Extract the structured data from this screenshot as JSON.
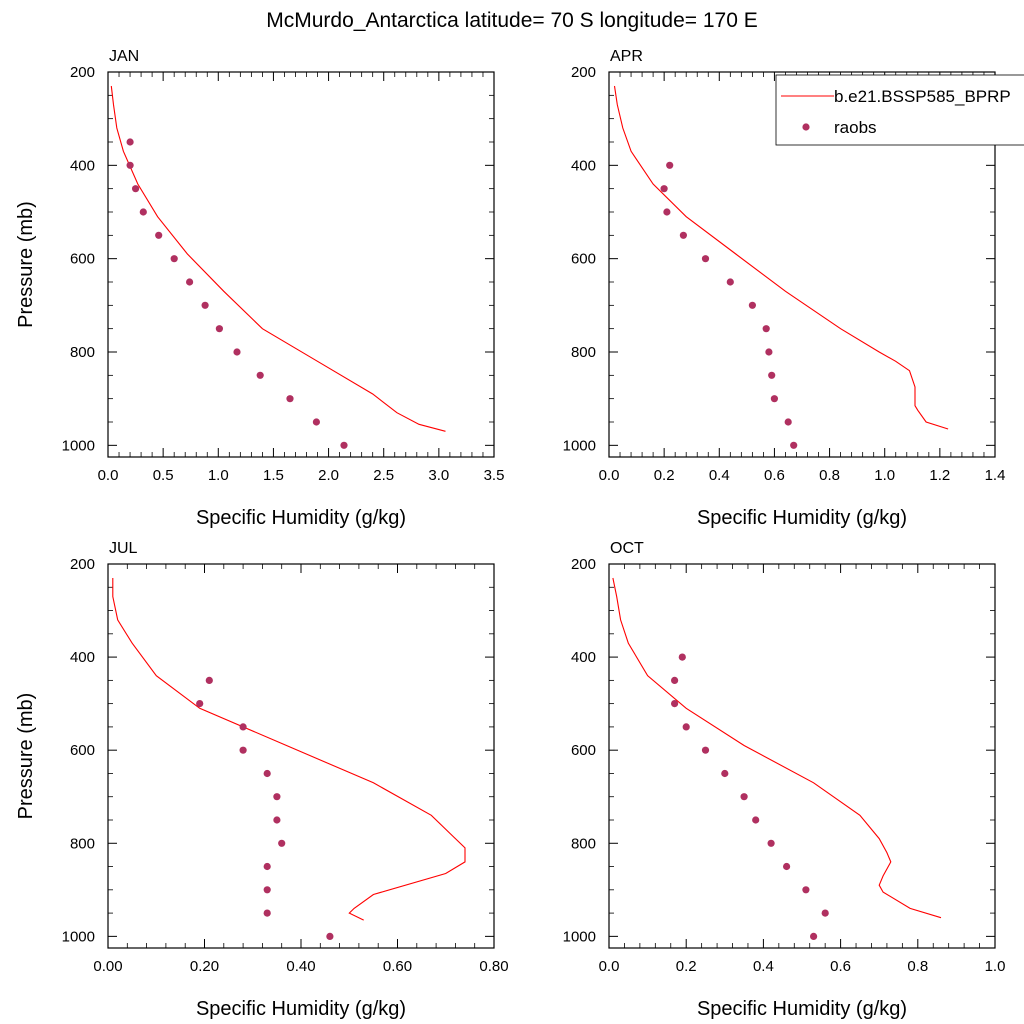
{
  "figure": {
    "title": "McMurdo_Antarctica  latitude= 70 S longitude= 170 E"
  },
  "legend": {
    "model_label": "b.e21.BSSP585_BPRP",
    "obs_label": "raobs"
  },
  "colors": {
    "model": "#ff0000",
    "obs": "#b03060"
  },
  "chart_data": [
    {
      "type": "line",
      "panel": "JAN",
      "title": "JAN",
      "xlabel": "Specific Humidity (g/kg)",
      "ylabel": "Pressure (mb)",
      "xlim": [
        0,
        3.5
      ],
      "ylim": [
        200,
        1025
      ],
      "y_reversed": true,
      "xticks": [
        "0.0",
        "0.5",
        "1.0",
        "1.5",
        "2.0",
        "2.5",
        "3.0",
        "3.5"
      ],
      "xtick_values": [
        0,
        0.5,
        1.0,
        1.5,
        2.0,
        2.5,
        3.0,
        3.5
      ],
      "yticks": [
        "200",
        "400",
        "600",
        "800",
        "1000"
      ],
      "ytick_values": [
        200,
        400,
        600,
        800,
        1000
      ],
      "series": [
        {
          "name": "b.e21.BSSP585_BPRP",
          "kind": "line",
          "points": [
            [
              0.03,
              230
            ],
            [
              0.05,
              270
            ],
            [
              0.08,
              320
            ],
            [
              0.14,
              370
            ],
            [
              0.27,
              440
            ],
            [
              0.45,
              510
            ],
            [
              0.72,
              590
            ],
            [
              1.05,
              670
            ],
            [
              1.4,
              750
            ],
            [
              1.9,
              820
            ],
            [
              2.4,
              890
            ],
            [
              2.62,
              930
            ],
            [
              2.82,
              955
            ],
            [
              3.06,
              970
            ]
          ]
        },
        {
          "name": "raobs",
          "kind": "scatter",
          "points": [
            [
              0.2,
              350
            ],
            [
              0.2,
              400
            ],
            [
              0.25,
              450
            ],
            [
              0.32,
              500
            ],
            [
              0.46,
              550
            ],
            [
              0.6,
              600
            ],
            [
              0.74,
              650
            ],
            [
              0.88,
              700
            ],
            [
              1.01,
              750
            ],
            [
              1.17,
              800
            ],
            [
              1.38,
              850
            ],
            [
              1.65,
              900
            ],
            [
              1.89,
              950
            ],
            [
              2.14,
              1000
            ]
          ]
        }
      ]
    },
    {
      "type": "line",
      "panel": "APR",
      "title": "APR",
      "xlabel": "Specific Humidity (g/kg)",
      "ylabel": "",
      "xlim": [
        0,
        1.4
      ],
      "ylim": [
        200,
        1025
      ],
      "y_reversed": true,
      "xticks": [
        "0.0",
        "0.2",
        "0.4",
        "0.6",
        "0.8",
        "1.0",
        "1.2",
        "1.4"
      ],
      "xtick_values": [
        0,
        0.2,
        0.4,
        0.6,
        0.8,
        1.0,
        1.2,
        1.4
      ],
      "yticks": [
        "200",
        "400",
        "600",
        "800",
        "1000"
      ],
      "ytick_values": [
        200,
        400,
        600,
        800,
        1000
      ],
      "series": [
        {
          "name": "b.e21.BSSP585_BPRP",
          "kind": "line",
          "points": [
            [
              0.02,
              230
            ],
            [
              0.03,
              270
            ],
            [
              0.05,
              320
            ],
            [
              0.08,
              370
            ],
            [
              0.16,
              440
            ],
            [
              0.28,
              510
            ],
            [
              0.46,
              590
            ],
            [
              0.64,
              670
            ],
            [
              0.84,
              750
            ],
            [
              0.98,
              800
            ],
            [
              1.04,
              820
            ],
            [
              1.09,
              840
            ],
            [
              1.11,
              875
            ],
            [
              1.11,
              915
            ],
            [
              1.12,
              925
            ],
            [
              1.15,
              950
            ],
            [
              1.23,
              965
            ]
          ]
        },
        {
          "name": "raobs",
          "kind": "scatter",
          "points": [
            [
              0.22,
              400
            ],
            [
              0.2,
              450
            ],
            [
              0.21,
              500
            ],
            [
              0.27,
              550
            ],
            [
              0.35,
              600
            ],
            [
              0.44,
              650
            ],
            [
              0.52,
              700
            ],
            [
              0.57,
              750
            ],
            [
              0.58,
              800
            ],
            [
              0.59,
              850
            ],
            [
              0.6,
              900
            ],
            [
              0.65,
              950
            ],
            [
              0.67,
              1000
            ]
          ]
        }
      ]
    },
    {
      "type": "line",
      "panel": "JUL",
      "title": "JUL",
      "xlabel": "Specific Humidity (g/kg)",
      "ylabel": "Pressure (mb)",
      "xlim": [
        0,
        0.8
      ],
      "ylim": [
        200,
        1025
      ],
      "y_reversed": true,
      "xticks": [
        "0.00",
        "0.20",
        "0.40",
        "0.60",
        "0.80"
      ],
      "xtick_values": [
        0,
        0.2,
        0.4,
        0.6,
        0.8
      ],
      "yticks": [
        "200",
        "400",
        "600",
        "800",
        "1000"
      ],
      "ytick_values": [
        200,
        400,
        600,
        800,
        1000
      ],
      "series": [
        {
          "name": "b.e21.BSSP585_BPRP",
          "kind": "line",
          "points": [
            [
              0.01,
              230
            ],
            [
              0.01,
              270
            ],
            [
              0.02,
              320
            ],
            [
              0.05,
              370
            ],
            [
              0.1,
              440
            ],
            [
              0.19,
              510
            ],
            [
              0.37,
              590
            ],
            [
              0.55,
              670
            ],
            [
              0.67,
              740
            ],
            [
              0.71,
              780
            ],
            [
              0.74,
              810
            ],
            [
              0.74,
              840
            ],
            [
              0.7,
              865
            ],
            [
              0.55,
              910
            ],
            [
              0.51,
              940
            ],
            [
              0.5,
              950
            ],
            [
              0.53,
              965
            ]
          ]
        },
        {
          "name": "raobs",
          "kind": "scatter",
          "points": [
            [
              0.21,
              450
            ],
            [
              0.19,
              500
            ],
            [
              0.28,
              550
            ],
            [
              0.28,
              600
            ],
            [
              0.33,
              650
            ],
            [
              0.35,
              700
            ],
            [
              0.35,
              750
            ],
            [
              0.36,
              800
            ],
            [
              0.33,
              850
            ],
            [
              0.33,
              900
            ],
            [
              0.33,
              950
            ],
            [
              0.46,
              1000
            ]
          ]
        }
      ]
    },
    {
      "type": "line",
      "panel": "OCT",
      "title": "OCT",
      "xlabel": "Specific Humidity (g/kg)",
      "ylabel": "",
      "xlim": [
        0,
        1.0
      ],
      "ylim": [
        200,
        1025
      ],
      "y_reversed": true,
      "xticks": [
        "0.0",
        "0.2",
        "0.4",
        "0.6",
        "0.8",
        "1.0"
      ],
      "xtick_values": [
        0,
        0.2,
        0.4,
        0.6,
        0.8,
        1.0
      ],
      "yticks": [
        "200",
        "400",
        "600",
        "800",
        "1000"
      ],
      "ytick_values": [
        200,
        400,
        600,
        800,
        1000
      ],
      "series": [
        {
          "name": "b.e21.BSSP585_BPRP",
          "kind": "line",
          "points": [
            [
              0.01,
              230
            ],
            [
              0.02,
              270
            ],
            [
              0.03,
              320
            ],
            [
              0.05,
              370
            ],
            [
              0.1,
              440
            ],
            [
              0.2,
              510
            ],
            [
              0.35,
              590
            ],
            [
              0.53,
              670
            ],
            [
              0.65,
              740
            ],
            [
              0.7,
              790
            ],
            [
              0.72,
              820
            ],
            [
              0.73,
              840
            ],
            [
              0.71,
              870
            ],
            [
              0.7,
              890
            ],
            [
              0.71,
              905
            ],
            [
              0.78,
              940
            ],
            [
              0.86,
              960
            ]
          ]
        },
        {
          "name": "raobs",
          "kind": "scatter",
          "points": [
            [
              0.19,
              400
            ],
            [
              0.17,
              450
            ],
            [
              0.17,
              500
            ],
            [
              0.2,
              550
            ],
            [
              0.25,
              600
            ],
            [
              0.3,
              650
            ],
            [
              0.35,
              700
            ],
            [
              0.38,
              750
            ],
            [
              0.42,
              800
            ],
            [
              0.46,
              850
            ],
            [
              0.51,
              900
            ],
            [
              0.56,
              950
            ],
            [
              0.53,
              1000
            ]
          ]
        }
      ]
    }
  ]
}
